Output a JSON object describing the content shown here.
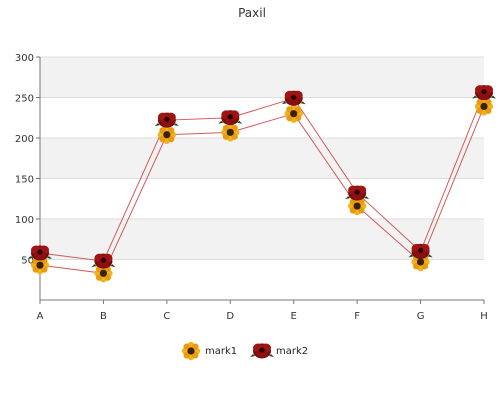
{
  "chart_data": {
    "type": "line",
    "title": "Paxil",
    "categories": [
      "A",
      "B",
      "C",
      "D",
      "E",
      "F",
      "G",
      "H"
    ],
    "ylim": [
      0,
      300
    ],
    "yticks": [
      50,
      100,
      150,
      200,
      250,
      300
    ],
    "grid": true,
    "legend_position": "bottom",
    "series": [
      {
        "name": "mark1",
        "marker": "sunflower-icon",
        "color": "#d45a5a",
        "values": [
          43,
          33,
          204,
          207,
          230,
          116,
          47,
          239
        ]
      },
      {
        "name": "mark2",
        "marker": "rose-icon",
        "color": "#d45a5a",
        "values": [
          58,
          48,
          222,
          225,
          249,
          132,
          60,
          256
        ]
      }
    ]
  }
}
